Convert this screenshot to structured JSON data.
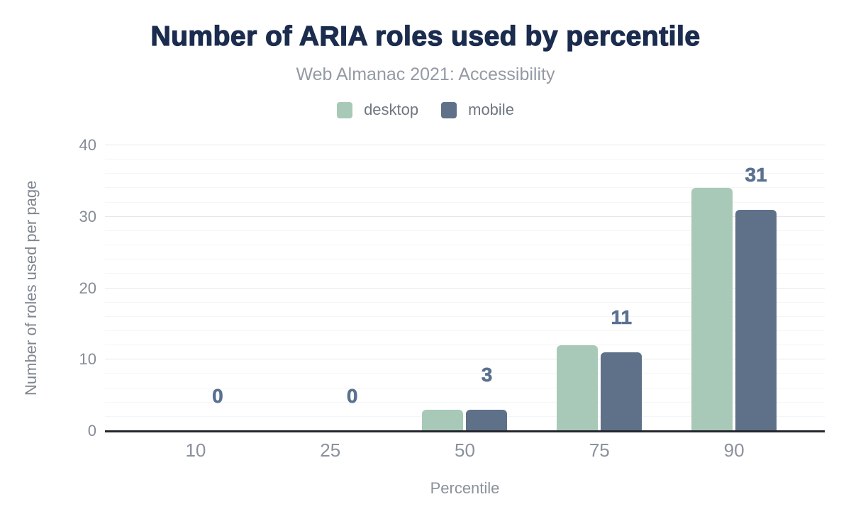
{
  "header": {
    "title": "Number of ARIA roles used by percentile",
    "subtitle": "Web Almanac 2021: Accessibility"
  },
  "legend": [
    {
      "label": "desktop",
      "color": "#a8c9b8"
    },
    {
      "label": "mobile",
      "color": "#5f7089"
    }
  ],
  "chart_data": {
    "type": "bar",
    "title": "Number of ARIA roles used by percentile",
    "subtitle": "Web Almanac 2021: Accessibility",
    "categories": [
      "10",
      "25",
      "50",
      "75",
      "90"
    ],
    "series": [
      {
        "name": "desktop",
        "color": "#a8c9b8",
        "values": [
          0,
          0,
          3,
          12,
          34
        ]
      },
      {
        "name": "mobile",
        "color": "#5f7089",
        "values": [
          0,
          0,
          3,
          11,
          31
        ]
      }
    ],
    "data_labels": {
      "series": "mobile",
      "values": [
        "0",
        "0",
        "3",
        "11",
        "31"
      ]
    },
    "data_label_color": "#5a7190",
    "xlabel": "Percentile",
    "ylabel": "Number of roles used per page",
    "ylim": [
      0,
      40
    ],
    "y_ticks": [
      "0",
      "10",
      "20",
      "30",
      "40"
    ],
    "y_major_step": 10,
    "y_minor_step": 2,
    "grid": "horizontal",
    "legend_position": "top",
    "axis_line_color": "#23262c"
  }
}
